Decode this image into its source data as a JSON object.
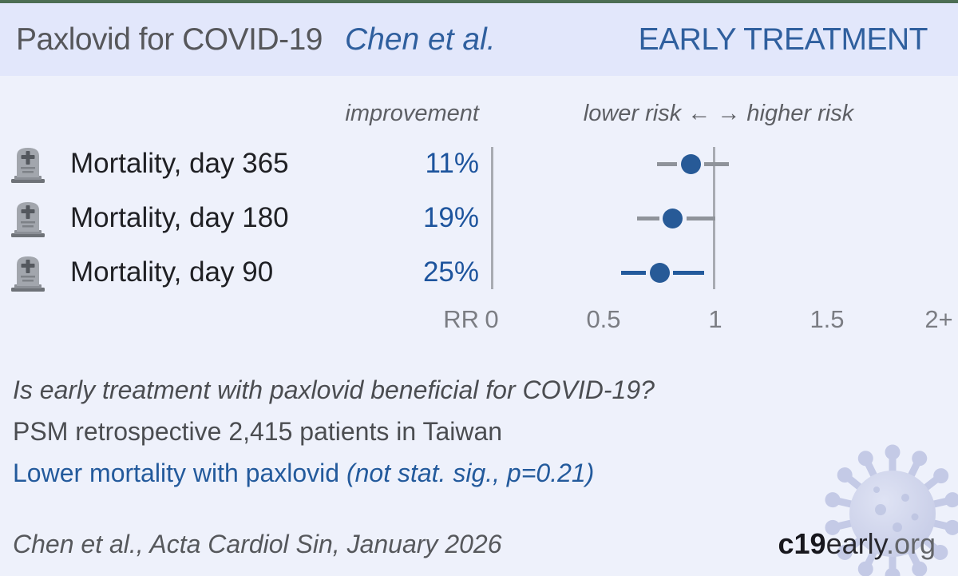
{
  "header": {
    "title": "Paxlovid for COVID-19",
    "author": "Chen et al.",
    "stage": "EARLY TREATMENT"
  },
  "columns": {
    "improvement_label": "improvement",
    "risk_axis_label": "lower risk ← → higher risk"
  },
  "chart_data": {
    "type": "forest",
    "x_axis_label": "RR",
    "xlim": [
      0,
      2
    ],
    "reference_line": 1,
    "axis_ticks": [
      {
        "value": 0,
        "label": "0"
      },
      {
        "value": 0.5,
        "label": "0.5"
      },
      {
        "value": 1,
        "label": "1"
      },
      {
        "value": 1.5,
        "label": "1.5"
      },
      {
        "value": 2,
        "label": "2+"
      }
    ],
    "rows": [
      {
        "icon": "tombstone-icon",
        "label": "Mortality, day 365",
        "improvement": "11%",
        "rr": 0.89,
        "ci": [
          0.74,
          1.06
        ],
        "ci_color": "gray"
      },
      {
        "icon": "tombstone-icon",
        "label": "Mortality, day 180",
        "improvement": "19%",
        "rr": 0.81,
        "ci": [
          0.65,
          1.0
        ],
        "ci_color": "gray"
      },
      {
        "icon": "tombstone-icon",
        "label": "Mortality, day 90",
        "improvement": "25%",
        "rr": 0.75,
        "ci": [
          0.58,
          0.95
        ],
        "ci_color": "blue"
      }
    ]
  },
  "summary": {
    "question": "Is early treatment with paxlovid beneficial for COVID-19?",
    "study": "PSM retrospective 2,415 patients in Taiwan",
    "finding": "Lower mortality with paxlovid ",
    "finding_note": "(not stat. sig., p=0.21)"
  },
  "footer": {
    "citation": "Chen et al., Acta Cardiol Sin, January 2026",
    "logo": {
      "c19": "c19",
      "early": "early",
      "org": ".org"
    }
  },
  "colors": {
    "topbar_green": "#4d6e54",
    "header_band": "#e2e7fb",
    "background": "#eef1fb",
    "accent_blue": "#235a9c",
    "dot_blue": "#275a97",
    "ci_gray": "#8f939a",
    "header_blue": "#2f5f9e"
  }
}
